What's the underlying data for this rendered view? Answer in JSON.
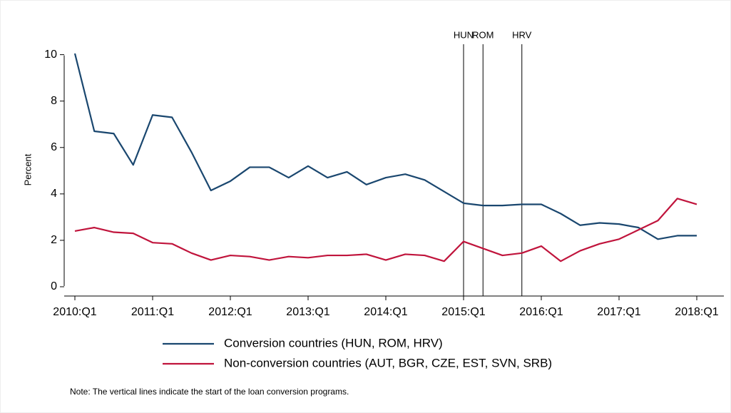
{
  "chart_data": {
    "type": "line",
    "y_label": "Percent",
    "categories": [
      "2010:Q1",
      null,
      null,
      null,
      "2011:Q1",
      null,
      null,
      null,
      "2012:Q1",
      null,
      null,
      null,
      "2013:Q1",
      null,
      null,
      null,
      "2014:Q1",
      null,
      null,
      null,
      "2015:Q1",
      null,
      null,
      null,
      "2016:Q1",
      null,
      null,
      null,
      "2017:Q1",
      null,
      null,
      null,
      "2018:Q1"
    ],
    "series": [
      {
        "name": "Conversion countries (HUN, ROM, HRV)",
        "color": "#1a476f",
        "values": [
          10.05,
          6.7,
          6.6,
          5.25,
          7.4,
          7.3,
          5.8,
          4.15,
          4.55,
          5.15,
          5.15,
          4.7,
          5.2,
          4.7,
          4.95,
          4.4,
          4.7,
          4.85,
          4.6,
          4.1,
          3.6,
          3.5,
          3.5,
          3.55,
          3.55,
          3.15,
          2.65,
          2.75,
          2.7,
          2.55,
          2.05,
          2.2,
          2.2
        ]
      },
      {
        "name": "Non-conversion countries (AUT, BGR, CZE, EST, SVN, SRB)",
        "color": "#c0143c",
        "values": [
          2.4,
          2.55,
          2.35,
          2.3,
          1.9,
          1.85,
          1.45,
          1.15,
          1.35,
          1.3,
          1.15,
          1.3,
          1.25,
          1.35,
          1.35,
          1.4,
          1.15,
          1.4,
          1.35,
          1.1,
          1.95,
          1.65,
          1.35,
          1.45,
          1.75,
          1.1,
          1.55,
          1.85,
          2.05,
          2.45,
          2.85,
          3.8,
          3.55
        ]
      }
    ],
    "ylim": [
      -0.4,
      10.45
    ],
    "yticks": [
      0,
      2,
      4,
      6,
      8,
      10
    ],
    "vlines": [
      {
        "label": "HUN",
        "index": 20
      },
      {
        "label": "ROM",
        "index": 21
      },
      {
        "label": "HRV",
        "index": 23
      }
    ],
    "note": "Note: The vertical lines indicate the start of the loan conversion programs."
  }
}
